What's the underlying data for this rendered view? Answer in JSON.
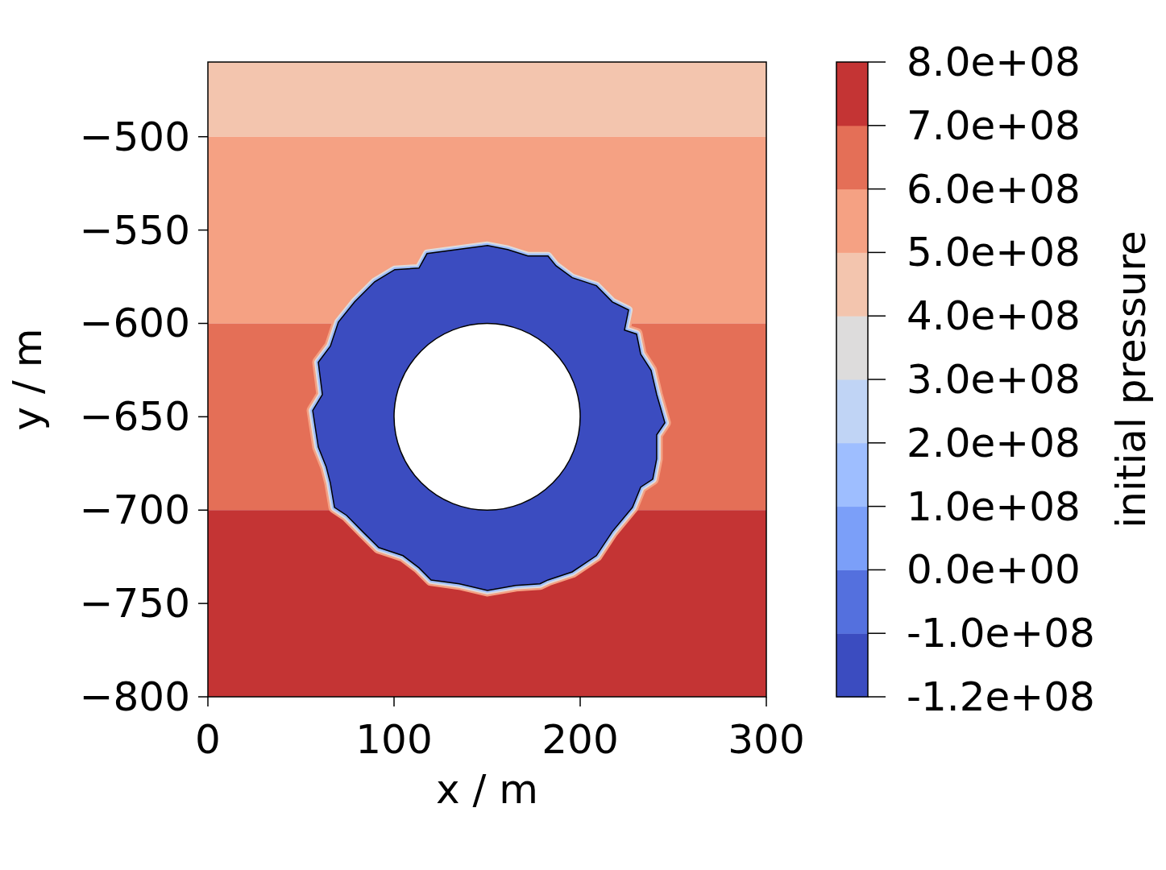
{
  "chart_data": {
    "type": "contour",
    "x_label": "x / m",
    "y_label": "y / m",
    "xlim": [
      0,
      300
    ],
    "ylim": [
      -800,
      -460
    ],
    "xticks": [
      0,
      100,
      200,
      300
    ],
    "yticks": [
      {
        "value": -800,
        "label": "−800"
      },
      {
        "value": -750,
        "label": "−750"
      },
      {
        "value": -700,
        "label": "−700"
      },
      {
        "value": -650,
        "label": "−650"
      },
      {
        "value": -600,
        "label": "−600"
      },
      {
        "value": -550,
        "label": "−550"
      },
      {
        "value": -500,
        "label": "−500"
      }
    ],
    "colorbar": {
      "label": "initial pressure",
      "levels": [
        -120000000,
        -100000000,
        0,
        100000000,
        200000000,
        300000000,
        400000000,
        500000000,
        600000000,
        700000000,
        800000000
      ],
      "ticks": [
        {
          "value": -120000000,
          "label": "-1.2e+08"
        },
        {
          "value": -100000000,
          "label": "-1.0e+08"
        },
        {
          "value": 0,
          "label": "0.0e+00"
        },
        {
          "value": 100000000,
          "label": "1.0e+08"
        },
        {
          "value": 200000000,
          "label": "2.0e+08"
        },
        {
          "value": 300000000,
          "label": "3.0e+08"
        },
        {
          "value": 400000000,
          "label": "4.0e+08"
        },
        {
          "value": 500000000,
          "label": "5.0e+08"
        },
        {
          "value": 600000000,
          "label": "6.0e+08"
        },
        {
          "value": 700000000,
          "label": "7.0e+08"
        },
        {
          "value": 800000000,
          "label": "8.0e+08"
        }
      ]
    },
    "colors": [
      "#3b4cc0",
      "#5470de",
      "#7b9ff9",
      "#9ebeff",
      "#c0d4f5",
      "#dddcdc",
      "#f3c5ae",
      "#f5a183",
      "#e46f57",
      "#c43434"
    ],
    "bands": [
      {
        "ymin": -500,
        "ymax": -460,
        "value_range": [
          400000000,
          500000000
        ]
      },
      {
        "ymin": -600,
        "ymax": -500,
        "value_range": [
          500000000,
          600000000
        ]
      },
      {
        "ymin": -700,
        "ymax": -600,
        "value_range": [
          600000000,
          700000000
        ]
      },
      {
        "ymin": -800,
        "ymax": -700,
        "value_range": [
          700000000,
          800000000
        ]
      }
    ],
    "inner_zone": {
      "value_range": [
        -120000000,
        -100000000
      ],
      "boundary_x": [
        150.2,
        161.0,
        171.9,
        182.7,
        187.0,
        195.7,
        208.7,
        217.3,
        226.0,
        223.8,
        230.3,
        232.5,
        238.1,
        241.1,
        245.5,
        241.1,
        241.1,
        239.0,
        232.5,
        228.1,
        217.3,
        208.7,
        195.7,
        182.7,
        178.4,
        165.4,
        150.2,
        135.1,
        119.9,
        113.4,
        104.8,
        91.8,
        83.1,
        74.5,
        68.0,
        65.8,
        63.6,
        59.3,
        56.3,
        61.5,
        59.3,
        65.8,
        70.1,
        78.8,
        89.6,
        100.4,
        113.4,
        117.7
      ],
      "boundary_y": [
        -558.3,
        -560.4,
        -563.9,
        -563.9,
        -569.1,
        -575.5,
        -579.8,
        -588.5,
        -592.8,
        -603.6,
        -605.7,
        -616.5,
        -625.2,
        -638.1,
        -653.2,
        -659.7,
        -672.6,
        -683.4,
        -687.7,
        -698.5,
        -711.5,
        -724.4,
        -733.1,
        -737.4,
        -739.5,
        -740.4,
        -743.0,
        -739.5,
        -737.4,
        -730.9,
        -724.4,
        -720.1,
        -711.5,
        -702.8,
        -698.5,
        -685.6,
        -676.9,
        -666.2,
        -646.7,
        -638.1,
        -620.8,
        -612.2,
        -599.3,
        -588.5,
        -577.7,
        -571.2,
        -570.4,
        -562.6
      ]
    },
    "hole": {
      "center_x": 150,
      "center_y": -650,
      "radius": 50
    }
  }
}
